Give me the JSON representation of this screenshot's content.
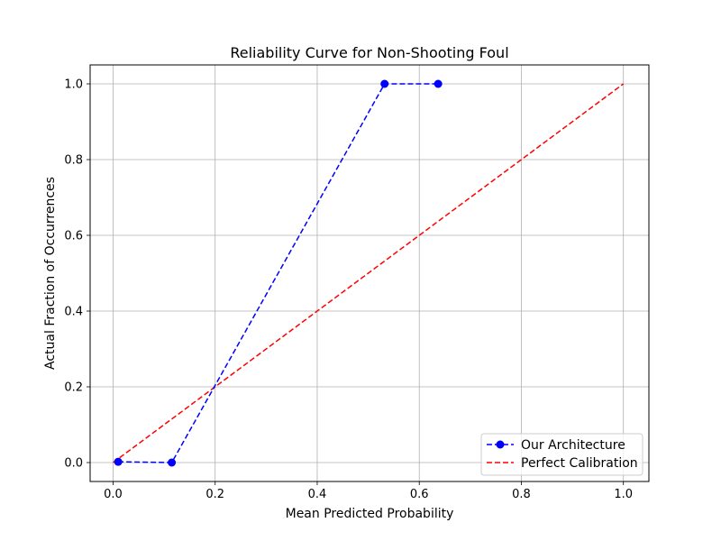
{
  "chart_data": {
    "type": "line",
    "title": "Reliability Curve for Non-Shooting Foul",
    "xlabel": "Mean Predicted Probability",
    "ylabel": "Actual Fraction of Occurrences",
    "xlim": [
      -0.045,
      1.05
    ],
    "ylim": [
      -0.05,
      1.05
    ],
    "xticks": [
      "0.0",
      "0.2",
      "0.4",
      "0.6",
      "0.8",
      "1.0"
    ],
    "yticks": [
      "0.0",
      "0.2",
      "0.4",
      "0.6",
      "0.8",
      "1.0"
    ],
    "grid": true,
    "legend_position": "lower-right",
    "series": [
      {
        "name": "Our Architecture",
        "color": "#0000ff",
        "linestyle": "dashed",
        "marker": "circle",
        "x": [
          0.01,
          0.115,
          0.532,
          0.637
        ],
        "y": [
          0.002,
          0.0,
          1.0,
          1.0
        ]
      },
      {
        "name": "Perfect Calibration",
        "color": "#ff0000",
        "linestyle": "dashed",
        "marker": "none",
        "x": [
          0.0,
          1.0
        ],
        "y": [
          0.0,
          1.0
        ]
      }
    ]
  }
}
